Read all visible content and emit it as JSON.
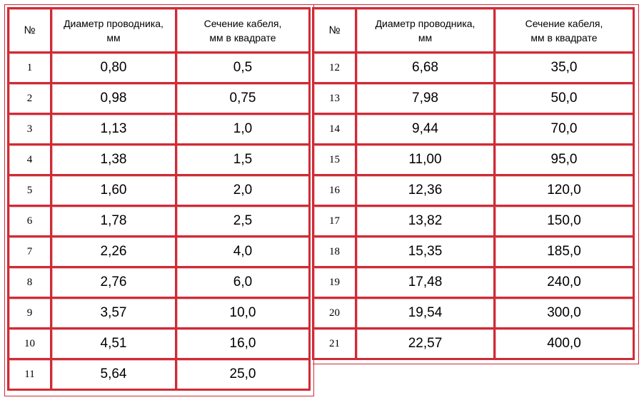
{
  "header": {
    "num": "№",
    "diameter_line1": "Диаметр проводника,",
    "diameter_line2": "мм",
    "section_line1": "Сечение кабеля,",
    "section_line2": "мм в квадрате"
  },
  "left_rows": [
    {
      "n": "1",
      "d": "0,80",
      "s": "0,5"
    },
    {
      "n": "2",
      "d": "0,98",
      "s": "0,75"
    },
    {
      "n": "3",
      "d": "1,13",
      "s": "1,0"
    },
    {
      "n": "4",
      "d": "1,38",
      "s": "1,5"
    },
    {
      "n": "5",
      "d": "1,60",
      "s": "2,0"
    },
    {
      "n": "6",
      "d": "1,78",
      "s": "2,5"
    },
    {
      "n": "7",
      "d": "2,26",
      "s": "4,0"
    },
    {
      "n": "8",
      "d": "2,76",
      "s": "6,0"
    },
    {
      "n": "9",
      "d": "3,57",
      "s": "10,0"
    },
    {
      "n": "10",
      "d": "4,51",
      "s": "16,0"
    },
    {
      "n": "11",
      "d": "5,64",
      "s": "25,0"
    }
  ],
  "right_rows": [
    {
      "n": "12",
      "d": "6,68",
      "s": "35,0"
    },
    {
      "n": "13",
      "d": "7,98",
      "s": "50,0"
    },
    {
      "n": "14",
      "d": "9,44",
      "s": "70,0"
    },
    {
      "n": "15",
      "d": "11,00",
      "s": "95,0"
    },
    {
      "n": "16",
      "d": "12,36",
      "s": "120,0"
    },
    {
      "n": "17",
      "d": "13,82",
      "s": "150,0"
    },
    {
      "n": "18",
      "d": "15,35",
      "s": "185,0"
    },
    {
      "n": "19",
      "d": "17,48",
      "s": "240,0"
    },
    {
      "n": "20",
      "d": "19,54",
      "s": "300,0"
    },
    {
      "n": "21",
      "d": "22,57",
      "s": "400,0"
    }
  ],
  "colors": {
    "border": "#cf2b36",
    "background": "#ffffff"
  }
}
